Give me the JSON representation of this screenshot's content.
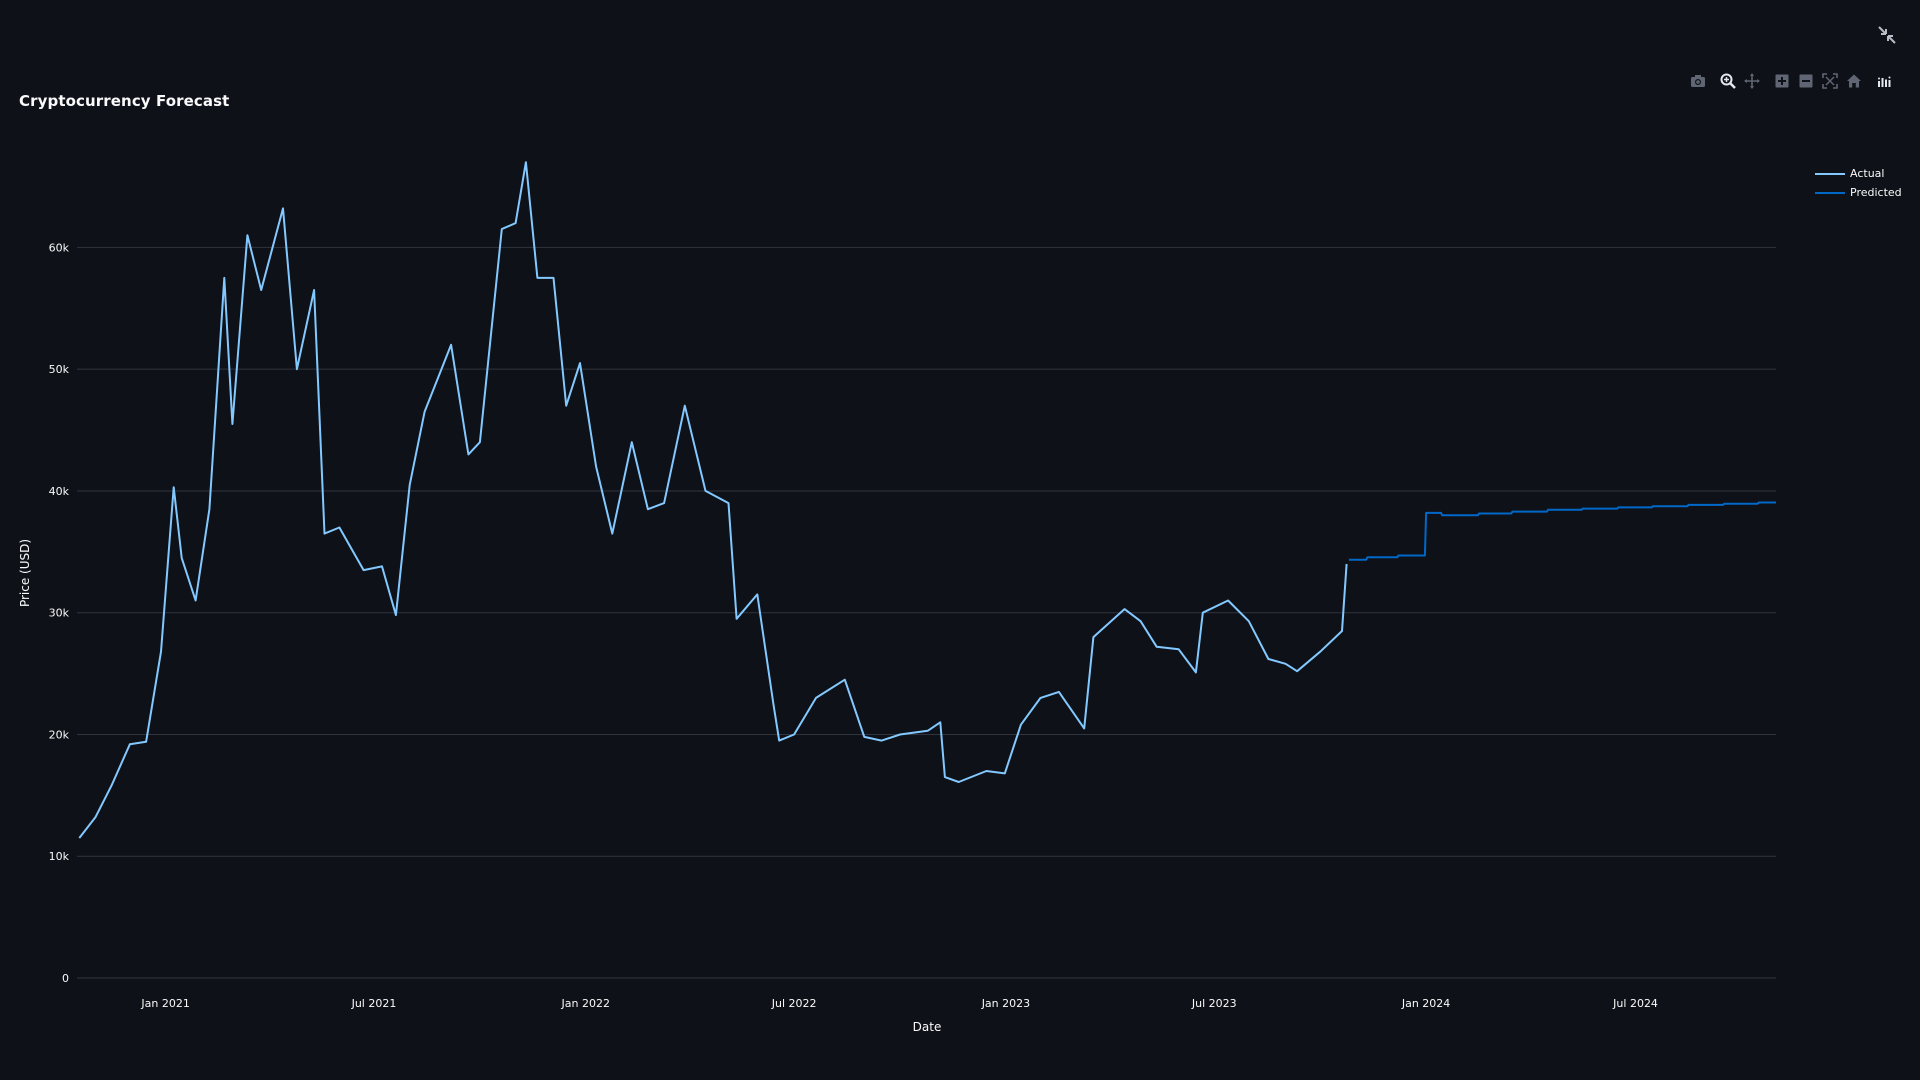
{
  "header": {
    "title": "Cryptocurrency Forecast"
  },
  "icons": {
    "fullscreen": "collapse-arrows-icon",
    "modebar": [
      "camera-icon",
      "zoom-icon",
      "pan-icon",
      "zoom-in-icon",
      "zoom-out-icon",
      "autoscale-icon",
      "home-icon",
      "plotly-logo-icon"
    ]
  },
  "colors": {
    "background": "#0e1118",
    "actual": "#83c9ff",
    "predicted": "#0068c9",
    "grid": "#31333f",
    "text": "#fafafa"
  },
  "chart_data": {
    "type": "line",
    "title": "Cryptocurrency Forecast",
    "xlabel": "Date",
    "ylabel": "Price (USD)",
    "xlim": [
      "2020-10-16",
      "2024-10-31"
    ],
    "ylim": [
      0,
      68000
    ],
    "x_tick_labels": [
      "Jan 2021",
      "Jul 2021",
      "Jan 2022",
      "Jul 2022",
      "Jan 2023",
      "Jul 2023",
      "Jan 2024",
      "Jul 2024"
    ],
    "y_tick_labels": [
      "0",
      "10k",
      "20k",
      "30k",
      "40k",
      "50k",
      "60k"
    ],
    "grid": true,
    "legend_position": "top-right",
    "series": [
      {
        "name": "Actual",
        "x": [
          "2020-10-18",
          "2020-11-01",
          "2020-11-15",
          "2020-12-01",
          "2020-12-15",
          "2020-12-28",
          "2021-01-08",
          "2021-01-15",
          "2021-01-27",
          "2021-02-08",
          "2021-02-21",
          "2021-02-28",
          "2021-03-13",
          "2021-03-25",
          "2021-04-13",
          "2021-04-25",
          "2021-05-10",
          "2021-05-19",
          "2021-06-01",
          "2021-06-22",
          "2021-07-08",
          "2021-07-20",
          "2021-08-01",
          "2021-08-14",
          "2021-09-06",
          "2021-09-21",
          "2021-10-01",
          "2021-10-20",
          "2021-11-01",
          "2021-11-10",
          "2021-11-20",
          "2021-12-04",
          "2021-12-15",
          "2021-12-27",
          "2022-01-10",
          "2022-01-24",
          "2022-02-10",
          "2022-02-24",
          "2022-03-10",
          "2022-03-28",
          "2022-04-15",
          "2022-05-05",
          "2022-05-12",
          "2022-05-30",
          "2022-06-13",
          "2022-06-18",
          "2022-07-01",
          "2022-07-20",
          "2022-08-14",
          "2022-08-31",
          "2022-09-15",
          "2022-10-01",
          "2022-10-25",
          "2022-11-05",
          "2022-11-09",
          "2022-11-21",
          "2022-12-15",
          "2022-12-31",
          "2023-01-14",
          "2023-01-31",
          "2023-02-16",
          "2023-03-10",
          "2023-03-18",
          "2023-04-14",
          "2023-04-28",
          "2023-05-12",
          "2023-05-31",
          "2023-06-15",
          "2023-06-21",
          "2023-07-13",
          "2023-07-31",
          "2023-08-17",
          "2023-09-01",
          "2023-09-11",
          "2023-10-01",
          "2023-10-20",
          "2023-10-24"
        ],
        "values": [
          11500,
          13200,
          15800,
          19200,
          19400,
          26800,
          40300,
          34500,
          31000,
          38500,
          57500,
          45500,
          61000,
          56500,
          63200,
          50000,
          56500,
          36500,
          37000,
          33500,
          33800,
          29800,
          40500,
          46500,
          52000,
          43000,
          44000,
          61500,
          62000,
          67000,
          57500,
          57500,
          47000,
          50500,
          42000,
          36500,
          44000,
          38500,
          39000,
          47000,
          40000,
          39000,
          29500,
          31500,
          22500,
          19500,
          20000,
          23000,
          24500,
          19800,
          19500,
          20000,
          20300,
          21000,
          16500,
          16100,
          17000,
          16800,
          20800,
          23000,
          23500,
          20500,
          28000,
          30300,
          29300,
          27200,
          27000,
          25100,
          30000,
          31000,
          29300,
          26200,
          25800,
          25200,
          26800,
          28500,
          34000
        ]
      },
      {
        "name": "Predicted",
        "x": [
          "2023-10-26",
          "2023-11-10",
          "2023-11-11",
          "2023-12-07",
          "2023-12-08",
          "2023-12-31",
          "2024-01-01",
          "2024-01-14",
          "2024-01-15",
          "2024-02-15",
          "2024-02-16",
          "2024-03-15",
          "2024-03-16",
          "2024-04-15",
          "2024-04-16",
          "2024-05-15",
          "2024-05-16",
          "2024-06-15",
          "2024-06-16",
          "2024-07-15",
          "2024-07-16",
          "2024-08-15",
          "2024-08-16",
          "2024-09-15",
          "2024-09-16",
          "2024-10-15",
          "2024-10-16",
          "2024-10-31"
        ],
        "values": [
          34350,
          34350,
          34550,
          34550,
          34700,
          34700,
          38200,
          38200,
          38000,
          38000,
          38150,
          38150,
          38300,
          38300,
          38450,
          38450,
          38550,
          38550,
          38650,
          38650,
          38750,
          38750,
          38850,
          38850,
          38950,
          38950,
          39050,
          39050
        ]
      }
    ]
  }
}
